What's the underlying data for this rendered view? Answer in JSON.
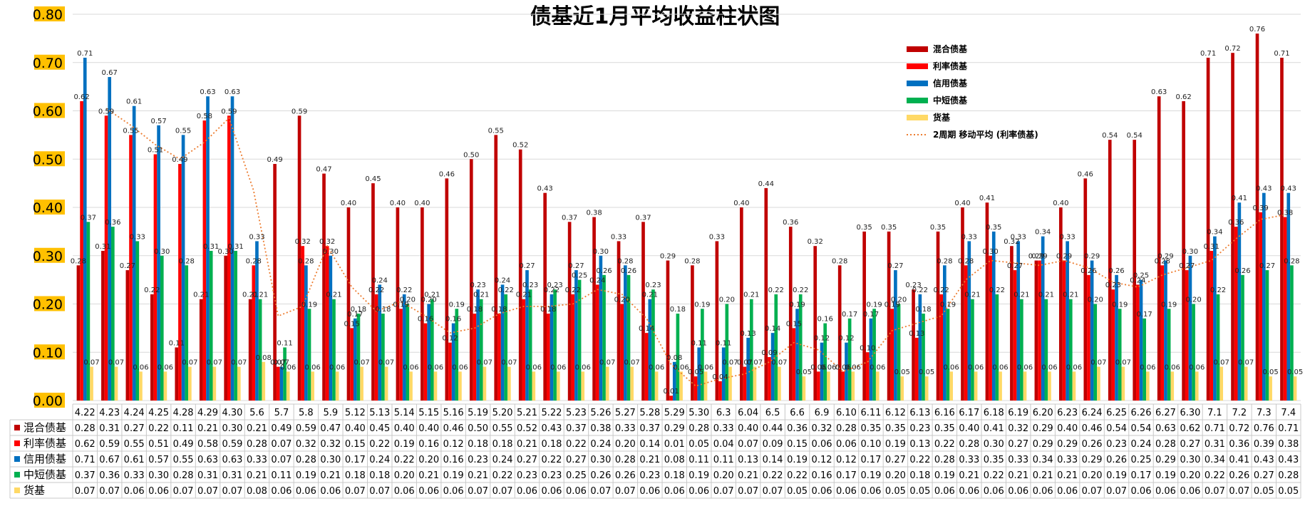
{
  "chart_data": {
    "type": "bar",
    "title": "债基近1月平均收益柱状图",
    "ylim": [
      0,
      0.8
    ],
    "yticks": [
      "0.00",
      "0.10",
      "0.20",
      "0.30",
      "0.40",
      "0.50",
      "0.60",
      "0.70",
      "0.80"
    ],
    "grid": true,
    "legend_position": "top-right",
    "categories": [
      "4.22",
      "4.23",
      "4.24",
      "4.25",
      "4.28",
      "4.29",
      "4.30",
      "5.6",
      "5.7",
      "5.8",
      "5.9",
      "5.12",
      "5.13",
      "5.14",
      "5.15",
      "5.16",
      "5.19",
      "5.20",
      "5.21",
      "5.22",
      "5.23",
      "5.26",
      "5.27",
      "5.28",
      "5.29",
      "5.30",
      "6.3",
      "6.04",
      "6.5",
      "6.6",
      "6.9",
      "6.10",
      "6.11",
      "6.12",
      "6.13",
      "6.16",
      "6.17",
      "6.18",
      "6.19",
      "6.20",
      "6.23",
      "6.24",
      "6.25",
      "6.26",
      "6.27",
      "6.30",
      "7.1",
      "7.2",
      "7.3",
      "7.4"
    ],
    "series": [
      {
        "name": "混合债基",
        "color": "#c00000",
        "values": [
          "0.28",
          "0.31",
          "0.27",
          "0.22",
          "0.11",
          "0.21",
          "0.30",
          "0.21",
          "0.49",
          "0.59",
          "0.47",
          "0.40",
          "0.45",
          "0.40",
          "0.40",
          "0.46",
          "0.50",
          "0.55",
          "0.52",
          "0.43",
          "0.37",
          "0.38",
          "0.33",
          "0.37",
          "0.29",
          "0.28",
          "0.33",
          "0.40",
          "0.44",
          "0.36",
          "0.32",
          "0.28",
          "0.35",
          "0.35",
          "0.23",
          "0.35",
          "0.40",
          "0.41",
          "0.32",
          "0.29",
          "0.40",
          "0.46",
          "0.54",
          "0.54",
          "0.63",
          "0.62",
          "0.71",
          "0.72",
          "0.76",
          "0.71"
        ]
      },
      {
        "name": "利率债基",
        "color": "#ff0000",
        "values": [
          "0.62",
          "0.59",
          "0.55",
          "0.51",
          "0.49",
          "0.58",
          "0.59",
          "0.28",
          "0.07",
          "0.32",
          "0.32",
          "0.15",
          "0.22",
          "0.19",
          "0.16",
          "0.12",
          "0.18",
          "0.18",
          "0.21",
          "0.18",
          "0.22",
          "0.24",
          "0.20",
          "0.14",
          "0.01",
          "0.05",
          "0.04",
          "0.07",
          "0.09",
          "0.15",
          "0.06",
          "0.06",
          "0.10",
          "0.19",
          "0.13",
          "0.22",
          "0.28",
          "0.30",
          "0.27",
          "0.29",
          "0.29",
          "0.26",
          "0.23",
          "0.24",
          "0.28",
          "0.27",
          "0.31",
          "0.36",
          "0.39",
          "0.38"
        ]
      },
      {
        "name": "信用债基",
        "color": "#0070c0",
        "values": [
          "0.71",
          "0.67",
          "0.61",
          "0.57",
          "0.55",
          "0.63",
          "0.63",
          "0.33",
          "0.07",
          "0.28",
          "0.30",
          "0.17",
          "0.24",
          "0.22",
          "0.20",
          "0.16",
          "0.23",
          "0.24",
          "0.27",
          "0.22",
          "0.27",
          "0.30",
          "0.28",
          "0.21",
          "0.08",
          "0.11",
          "0.11",
          "0.13",
          "0.14",
          "0.19",
          "0.12",
          "0.12",
          "0.17",
          "0.27",
          "0.22",
          "0.28",
          "0.33",
          "0.35",
          "0.33",
          "0.34",
          "0.33",
          "0.29",
          "0.26",
          "0.25",
          "0.29",
          "0.30",
          "0.34",
          "0.41",
          "0.43",
          "0.43"
        ]
      },
      {
        "name": "中短债基",
        "color": "#00b050",
        "values": [
          "0.37",
          "0.36",
          "0.33",
          "0.30",
          "0.28",
          "0.31",
          "0.31",
          "0.21",
          "0.11",
          "0.19",
          "0.21",
          "0.18",
          "0.18",
          "0.20",
          "0.21",
          "0.19",
          "0.21",
          "0.22",
          "0.23",
          "0.23",
          "0.25",
          "0.26",
          "0.26",
          "0.23",
          "0.18",
          "0.19",
          "0.20",
          "0.21",
          "0.22",
          "0.22",
          "0.16",
          "0.17",
          "0.19",
          "0.20",
          "0.18",
          "0.19",
          "0.21",
          "0.22",
          "0.21",
          "0.21",
          "0.21",
          "0.20",
          "0.19",
          "0.17",
          "0.19",
          "0.20",
          "0.22",
          "0.26",
          "0.27",
          "0.28"
        ]
      },
      {
        "name": "货基",
        "color": "#ffd966",
        "values": [
          "0.07",
          "0.07",
          "0.06",
          "0.06",
          "0.07",
          "0.07",
          "0.07",
          "0.08",
          "0.06",
          "0.06",
          "0.06",
          "0.07",
          "0.07",
          "0.06",
          "0.06",
          "0.06",
          "0.07",
          "0.07",
          "0.06",
          "0.06",
          "0.06",
          "0.07",
          "0.07",
          "0.06",
          "0.06",
          "0.06",
          "0.07",
          "0.07",
          "0.07",
          "0.05",
          "0.06",
          "0.06",
          "0.06",
          "0.05",
          "0.05",
          "0.06",
          "0.06",
          "0.06",
          "0.06",
          "0.06",
          "0.06",
          "0.07",
          "0.07",
          "0.06",
          "0.06",
          "0.06",
          "0.07",
          "0.07",
          "0.05",
          "0.05"
        ]
      }
    ],
    "trendline": {
      "label": "2周期 移动平均 (利率债基)",
      "color": "#ed7d31",
      "series": "利率债基",
      "period": 2
    }
  }
}
